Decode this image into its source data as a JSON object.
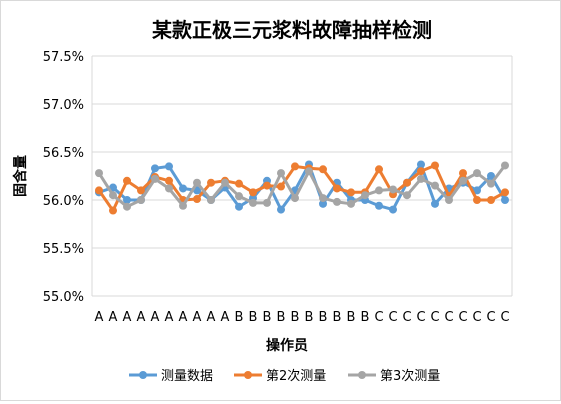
{
  "chart_data": {
    "type": "line",
    "title": "某款正极三元浆料故障抽样检测",
    "xlabel": "操作员",
    "ylabel": "固含量",
    "ylim": [
      55.0,
      57.5
    ],
    "yticks": [
      "55.0%",
      "55.5%",
      "56.0%",
      "56.5%",
      "57.0%",
      "57.5%"
    ],
    "yticks_values": [
      55.0,
      55.5,
      56.0,
      56.5,
      57.0,
      57.5
    ],
    "categories": [
      "A",
      "A",
      "A",
      "A",
      "A",
      "A",
      "A",
      "A",
      "A",
      "A",
      "B",
      "B",
      "B",
      "B",
      "B",
      "B",
      "B",
      "B",
      "B",
      "B",
      "C",
      "C",
      "C",
      "C",
      "C",
      "C",
      "C",
      "C",
      "C",
      "C"
    ],
    "grid": true,
    "legend_position": "bottom",
    "series": [
      {
        "name": "测量数据",
        "color": "#5b9bd5",
        "values": [
          56.08,
          56.13,
          56.0,
          56.0,
          56.33,
          56.35,
          56.12,
          56.1,
          56.0,
          56.13,
          55.93,
          56.02,
          56.2,
          55.9,
          56.1,
          56.37,
          55.96,
          56.18,
          56.0,
          56.0,
          55.94,
          55.9,
          56.18,
          56.37,
          55.96,
          56.12,
          56.18,
          56.1,
          56.25,
          56.0
        ]
      },
      {
        "name": "第2次测量",
        "color": "#ed7d31",
        "values": [
          56.1,
          55.89,
          56.2,
          56.1,
          56.24,
          56.2,
          56.0,
          56.01,
          56.18,
          56.2,
          56.17,
          56.08,
          56.15,
          56.14,
          56.35,
          56.33,
          56.32,
          56.12,
          56.08,
          56.08,
          56.32,
          56.06,
          56.18,
          56.3,
          56.36,
          56.04,
          56.28,
          56.0,
          56.0,
          56.08
        ]
      },
      {
        "name": "第3次测量",
        "color": "#a5a5a5",
        "values": [
          56.28,
          56.05,
          55.93,
          56.0,
          56.22,
          56.12,
          55.94,
          56.18,
          56.0,
          56.18,
          56.04,
          55.97,
          55.97,
          56.28,
          56.02,
          56.3,
          56.02,
          55.98,
          55.96,
          56.05,
          56.1,
          56.11,
          56.05,
          56.22,
          56.15,
          56.0,
          56.2,
          56.28,
          56.17,
          56.36
        ]
      }
    ]
  }
}
